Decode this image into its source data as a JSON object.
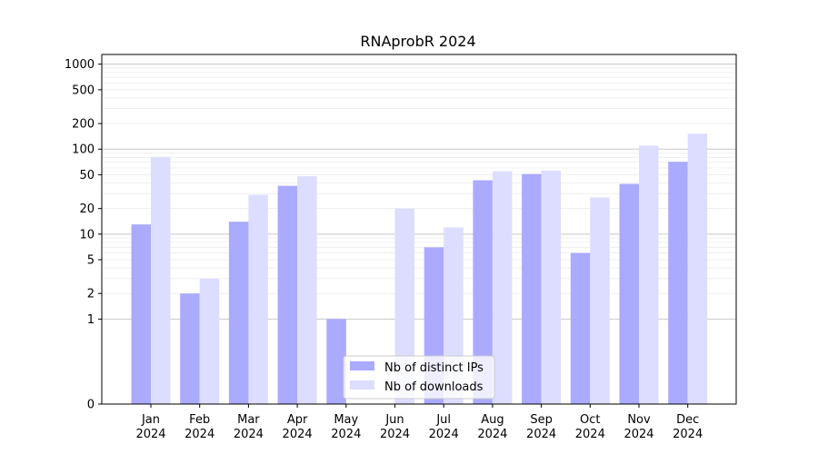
{
  "chart_data": {
    "type": "bar",
    "title": "RNAprobR 2024",
    "xlabel": "",
    "ylabel": "",
    "yscale": "symlog",
    "ylim": [
      0,
      1300
    ],
    "yticks": [
      0,
      1,
      2,
      5,
      10,
      20,
      50,
      100,
      200,
      500,
      1000
    ],
    "grid": true,
    "legend_position": "bottom-center",
    "categories": [
      [
        "Jan",
        "2024"
      ],
      [
        "Feb",
        "2024"
      ],
      [
        "Mar",
        "2024"
      ],
      [
        "Apr",
        "2024"
      ],
      [
        "May",
        "2024"
      ],
      [
        "Jun",
        "2024"
      ],
      [
        "Jul",
        "2024"
      ],
      [
        "Aug",
        "2024"
      ],
      [
        "Sep",
        "2024"
      ],
      [
        "Oct",
        "2024"
      ],
      [
        "Nov",
        "2024"
      ],
      [
        "Dec",
        "2024"
      ]
    ],
    "series": [
      {
        "name": "Nb of distinct IPs",
        "color": "#aaaaff",
        "values": [
          13,
          2,
          14,
          37,
          1,
          0,
          7,
          43,
          51,
          6,
          39,
          71
        ]
      },
      {
        "name": "Nb of downloads",
        "color": "#ddddff",
        "values": [
          81,
          3,
          29,
          48,
          0,
          20,
          12,
          55,
          56,
          27,
          110,
          152
        ]
      }
    ]
  }
}
